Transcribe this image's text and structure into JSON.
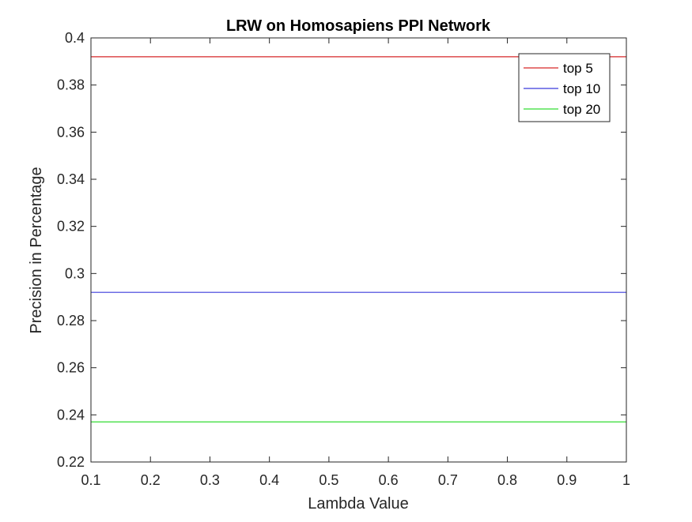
{
  "chart_data": {
    "type": "line",
    "title": "LRW on Homosapiens PPI Network",
    "xlabel": "Lambda Value",
    "ylabel": "Precision in Percentage",
    "xlim": [
      0.1,
      1
    ],
    "ylim": [
      0.22,
      0.4
    ],
    "x": [
      0.1,
      0.2,
      0.3,
      0.4,
      0.5,
      0.6,
      0.7,
      0.8,
      0.9,
      1
    ],
    "xticks": [
      "0.1",
      "0.2",
      "0.3",
      "0.4",
      "0.5",
      "0.6",
      "0.7",
      "0.8",
      "0.9",
      "1"
    ],
    "yticks": [
      "0.22",
      "0.24",
      "0.26",
      "0.28",
      "0.3",
      "0.32",
      "0.34",
      "0.36",
      "0.38",
      "0.4"
    ],
    "series": [
      {
        "name": "top 5",
        "color": "#d62728",
        "values": [
          0.392,
          0.392,
          0.392,
          0.392,
          0.392,
          0.392,
          0.392,
          0.392,
          0.392,
          0.392
        ]
      },
      {
        "name": "top 10",
        "color": "#3b3bdc",
        "values": [
          0.292,
          0.292,
          0.292,
          0.292,
          0.292,
          0.292,
          0.292,
          0.292,
          0.292,
          0.292
        ]
      },
      {
        "name": "top 20",
        "color": "#33dd33",
        "values": [
          0.237,
          0.237,
          0.237,
          0.237,
          0.237,
          0.237,
          0.237,
          0.237,
          0.237,
          0.237
        ]
      }
    ],
    "legend": "top-right",
    "grid": false
  }
}
